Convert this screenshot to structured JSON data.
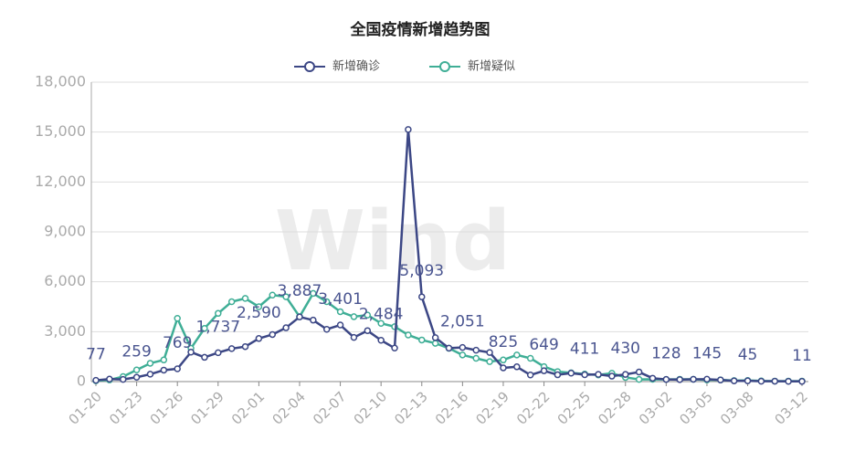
{
  "chart_data": {
    "type": "line",
    "title": "全国疫情新增趋势图",
    "watermark": "Wind",
    "legend_position": "top",
    "grid": true,
    "categories": [
      "01-20",
      null,
      null,
      "01-23",
      null,
      null,
      "01-26",
      null,
      null,
      "01-29",
      null,
      null,
      "02-01",
      null,
      null,
      "02-04",
      null,
      null,
      "02-07",
      null,
      null,
      "02-10",
      null,
      null,
      "02-13",
      null,
      null,
      "02-16",
      null,
      null,
      "02-19",
      null,
      null,
      "02-22",
      null,
      null,
      "02-25",
      null,
      null,
      "02-28",
      null,
      null,
      "03-02",
      null,
      null,
      "03-05",
      null,
      null,
      "03-08",
      null,
      null,
      null,
      "03-12"
    ],
    "ylim": [
      0,
      18000
    ],
    "yticks": [
      0,
      {
        "value": 3000,
        "label": "3,000"
      },
      {
        "value": 6000,
        "label": "6,000"
      },
      {
        "value": 9000,
        "label": "9,000"
      },
      {
        "value": 12000,
        "label": "12,000"
      },
      {
        "value": 15000,
        "label": "15,000"
      },
      {
        "value": 18000,
        "label": "18,000"
      }
    ],
    "series": [
      {
        "name": "新增确诊",
        "color": "#3c4785",
        "values": [
          77,
          149,
          131,
          259,
          444,
          688,
          769,
          1771,
          1459,
          1737,
          1982,
          2102,
          2590,
          2829,
          3235,
          3887,
          3694,
          3143,
          3401,
          2656,
          3062,
          2484,
          2015,
          15152,
          5093,
          2641,
          2009,
          2051,
          1886,
          1749,
          825,
          889,
          397,
          649,
          409,
          508,
          411,
          433,
          327,
          430,
          573,
          202,
          128,
          119,
          139,
          145,
          99,
          44,
          45,
          19,
          24,
          15,
          11
        ],
        "value_labels": [
          "77",
          null,
          null,
          "259",
          null,
          null,
          "769",
          null,
          null,
          "1,737",
          null,
          null,
          "2,590",
          null,
          null,
          "3,887",
          null,
          null,
          "3,401",
          null,
          null,
          "2,484",
          null,
          null,
          "5,093",
          null,
          null,
          "2,051",
          null,
          null,
          "825",
          null,
          null,
          "649",
          null,
          null,
          "411",
          null,
          null,
          "430",
          null,
          null,
          "128",
          null,
          null,
          "145",
          null,
          null,
          "45",
          null,
          null,
          null,
          "11"
        ]
      },
      {
        "name": "新增疑似",
        "color": "#3fae96",
        "values": [
          50,
          100,
          300,
          700,
          1100,
          1300,
          3800,
          2000,
          3200,
          4100,
          4800,
          5000,
          4500,
          5200,
          5100,
          3900,
          5300,
          4800,
          4200,
          3900,
          4000,
          3500,
          3300,
          2800,
          2500,
          2300,
          2000,
          1600,
          1400,
          1200,
          1300,
          1600,
          1400,
          900,
          600,
          530,
          450,
          400,
          500,
          250,
          130,
          140,
          130,
          140,
          140,
          100,
          100,
          60,
          70,
          40,
          30,
          30,
          30
        ]
      }
    ]
  }
}
